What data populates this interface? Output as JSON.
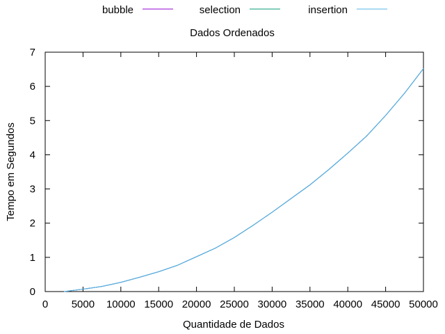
{
  "chart_data": {
    "type": "line",
    "title": "Dados Ordenados",
    "xlabel": "Quantidade de Dados",
    "ylabel": "Tempo em Segundos",
    "xlim": [
      0,
      50000
    ],
    "ylim": [
      0,
      7
    ],
    "x_ticks": [
      "0",
      "5000",
      "10000",
      "15000",
      "20000",
      "25000",
      "30000",
      "35000",
      "40000",
      "45000",
      "50000"
    ],
    "y_ticks": [
      "0",
      "1",
      "2",
      "3",
      "4",
      "5",
      "6",
      "7"
    ],
    "grid": false,
    "legend_position": "top-center",
    "x": [
      2500,
      5000,
      7500,
      10000,
      12500,
      15000,
      17500,
      20000,
      22500,
      25000,
      27500,
      30000,
      32500,
      35000,
      37500,
      40000,
      42500,
      45000,
      47500,
      50000
    ],
    "series": [
      {
        "name": "bubble",
        "color": "#9400d3",
        "values": [
          0.0,
          0.07,
          0.15,
          0.27,
          0.42,
          0.58,
          0.77,
          1.02,
          1.27,
          1.58,
          1.94,
          2.32,
          2.72,
          3.12,
          3.57,
          4.05,
          4.55,
          5.15,
          5.8,
          6.52
        ]
      },
      {
        "name": "selection",
        "color": "#009e73",
        "values": [
          0.0,
          0.07,
          0.15,
          0.27,
          0.42,
          0.58,
          0.77,
          1.02,
          1.27,
          1.58,
          1.94,
          2.32,
          2.72,
          3.12,
          3.57,
          4.05,
          4.55,
          5.15,
          5.8,
          6.52
        ]
      },
      {
        "name": "insertion",
        "color": "#56b4e9",
        "values": [
          0.0,
          0.07,
          0.15,
          0.27,
          0.42,
          0.58,
          0.77,
          1.02,
          1.27,
          1.58,
          1.94,
          2.32,
          2.72,
          3.12,
          3.57,
          4.05,
          4.55,
          5.15,
          5.8,
          6.52
        ]
      }
    ]
  }
}
